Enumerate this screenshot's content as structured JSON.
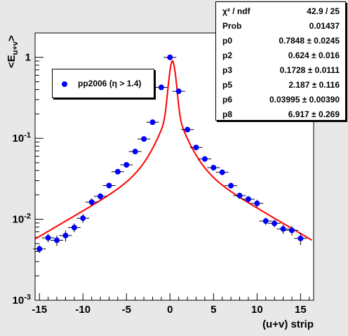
{
  "chart_data": {
    "type": "scatter",
    "xlabel": "(u+v) strip",
    "ylabel": "<E_{u+v}>",
    "xlim": [
      -15.5,
      16.5
    ],
    "ylim": [
      0.001,
      2
    ],
    "log_y": true,
    "grid": false,
    "legend_placement": "top-left",
    "x_ticks": [
      "-15",
      "-10",
      "-5",
      "0",
      "5",
      "10",
      "15"
    ],
    "y_ticks": [
      "1",
      "10^{-1}",
      "10^{-2}",
      "10^{-3}"
    ],
    "series": [
      {
        "name": "pp2006 (η > 1.4)",
        "marker_color": "#0000ff",
        "x": [
          -15,
          -14,
          -13,
          -12,
          -11,
          -10,
          -9,
          -8,
          -7,
          -6,
          -5,
          -4,
          -3,
          -2,
          -1,
          0,
          1,
          2,
          3,
          4,
          5,
          6,
          7,
          8,
          9,
          10,
          11,
          12,
          13,
          14,
          15
        ],
        "y": [
          0.0043,
          0.0059,
          0.0055,
          0.0063,
          0.0079,
          0.0103,
          0.0163,
          0.0192,
          0.0261,
          0.0387,
          0.047,
          0.0686,
          0.0981,
          0.158,
          0.426,
          1.0,
          0.381,
          0.128,
          0.0771,
          0.0556,
          0.0434,
          0.038,
          0.026,
          0.0196,
          0.0177,
          0.0157,
          0.0095,
          0.0089,
          0.0076,
          0.0073,
          0.0058
        ],
        "yerr": [
          0.0005,
          0.0007,
          0.0008,
          0.001,
          0.001,
          0.0013,
          0.0017,
          0.0018,
          0.002,
          0.0025,
          0.003,
          0.0035,
          0.005,
          0.006,
          0.015,
          0.03,
          0.015,
          0.006,
          0.004,
          0.003,
          0.0025,
          0.0025,
          0.002,
          0.0018,
          0.0017,
          0.0017,
          0.001,
          0.001,
          0.001,
          0.001,
          0.001
        ]
      }
    ],
    "fit": {
      "color": "#ff0000",
      "p0": 0.7848,
      "p2": 0.624,
      "p3": 0.1728,
      "p5": 2.187,
      "p6": 0.03995,
      "p8": 6.917,
      "x_range": [
        -15.5,
        16.3
      ]
    },
    "stats": [
      {
        "key": "χ² / ndf",
        "value": "42.9 / 25"
      },
      {
        "key": "Prob",
        "value": "0.01437"
      },
      {
        "key": "p0",
        "value": "0.7848 ± 0.0245"
      },
      {
        "key": "p2",
        "value": "0.624 ± 0.016"
      },
      {
        "key": "p3",
        "value": "0.1728 ± 0.0111"
      },
      {
        "key": "p5",
        "value": "2.187 ± 0.116"
      },
      {
        "key": "p6",
        "value": "0.03995 ± 0.00390"
      },
      {
        "key": "p8",
        "value": "6.917 ± 0.269"
      }
    ]
  }
}
